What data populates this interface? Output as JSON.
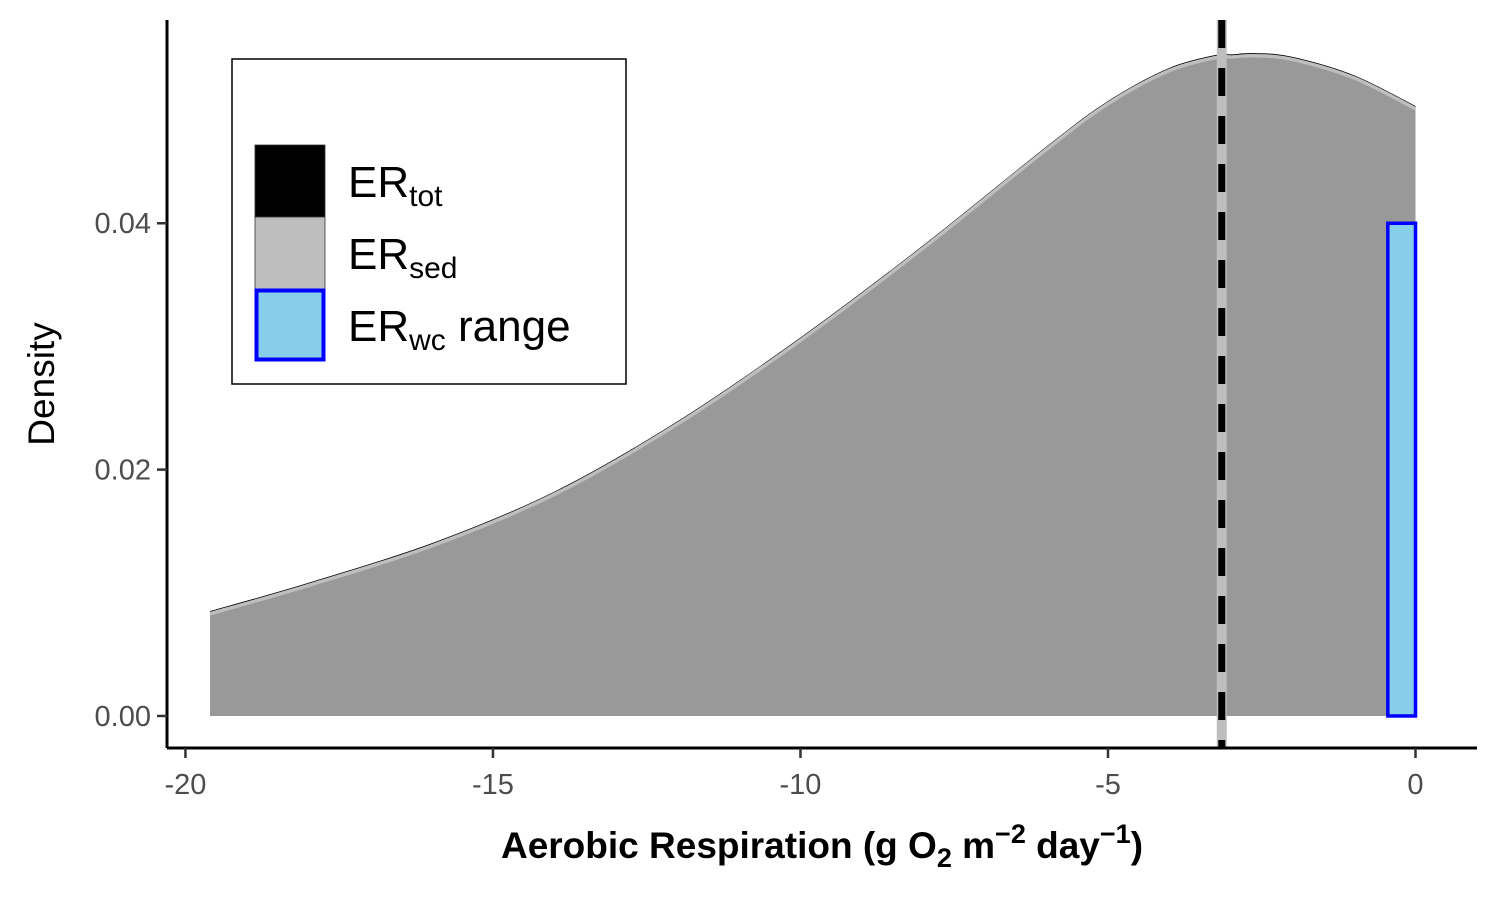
{
  "chart_data": {
    "type": "area",
    "xlabel": {
      "main": "Aerobic Respiration (g O",
      "o2_sub": "2",
      "m": " m",
      "m_exp": "−2",
      "day": " day",
      "day_exp": "−1",
      "close": ")"
    },
    "ylabel": "Density",
    "xlim": [
      -20.3,
      1.0
    ],
    "ylim": [
      -0.0026,
      0.0565
    ],
    "x_ticks": [
      -20,
      -15,
      -10,
      -5,
      0
    ],
    "x_tick_labels": [
      "-20",
      "-15",
      "-10",
      "-5",
      "0"
    ],
    "y_ticks": [
      0.0,
      0.02,
      0.04
    ],
    "y_tick_labels": [
      "0.00",
      "0.02",
      "0.04"
    ],
    "density_curve": {
      "x": [
        -19.6,
        -18,
        -16,
        -14,
        -12,
        -10,
        -8,
        -6,
        -5,
        -4,
        -3.2,
        -3,
        -2.6,
        -2,
        -1,
        0
      ],
      "y": [
        0.0083,
        0.0106,
        0.0138,
        0.018,
        0.0237,
        0.0305,
        0.038,
        0.046,
        0.0497,
        0.0524,
        0.0535,
        0.0535,
        0.0536,
        0.0533,
        0.0518,
        0.0493
      ]
    },
    "series": [
      {
        "name": "tot",
        "kind": "vline",
        "x": -3.15,
        "color": "#000000",
        "style": "dashed"
      },
      {
        "name": "sed",
        "kind": "vline",
        "x": -3.15,
        "color": "#bebebe",
        "style": "solid"
      },
      {
        "name": "wc range",
        "kind": "rect",
        "xmin": -0.45,
        "xmax": 0.0,
        "ymin": 0.0,
        "ymax": 0.04,
        "fill": "#87ceeb",
        "stroke": "#0000ff"
      }
    ],
    "legend": {
      "position": "top-left",
      "entries": [
        {
          "base": "ER",
          "sub": "tot",
          "suffix": "",
          "fill": "#000000",
          "stroke": "#000000"
        },
        {
          "base": "ER",
          "sub": "sed",
          "suffix": "",
          "fill": "#bebebe",
          "stroke": "#bebebe"
        },
        {
          "base": "ER",
          "sub": "wc",
          "suffix": " range",
          "fill": "#87ceeb",
          "stroke": "#0000ff"
        }
      ]
    },
    "colors": {
      "area_fill": "#999999",
      "curve_outline": "#bebebe",
      "axis": "#000000"
    },
    "grid": false
  }
}
